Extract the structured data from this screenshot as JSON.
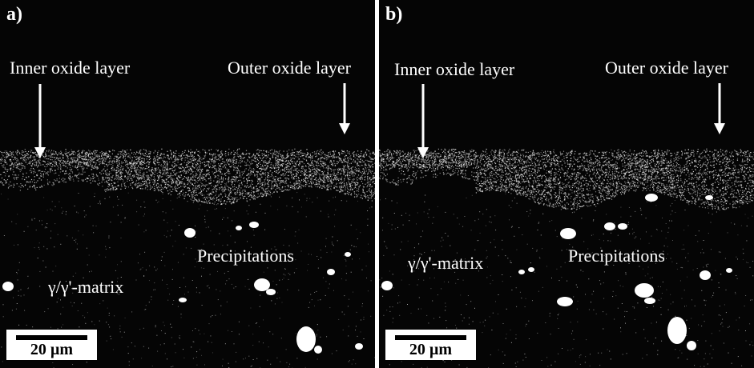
{
  "panels": [
    {
      "letter": "a)",
      "inner_label": "Inner oxide layer",
      "outer_label": "Outer oxide layer",
      "precip_label": "Precipitations",
      "matrix_label": "γ/γ'-matrix",
      "scale_label": "20 µm"
    },
    {
      "letter": "b)",
      "inner_label": "Inner oxide layer",
      "outer_label": "Outer oxide layer",
      "precip_label": "Precipitations",
      "matrix_label": "γ/γ'-matrix",
      "scale_label": "20 µm"
    }
  ],
  "colors": {
    "background": "#050505",
    "foreground": "#ffffff",
    "divider": "#ffffff"
  }
}
